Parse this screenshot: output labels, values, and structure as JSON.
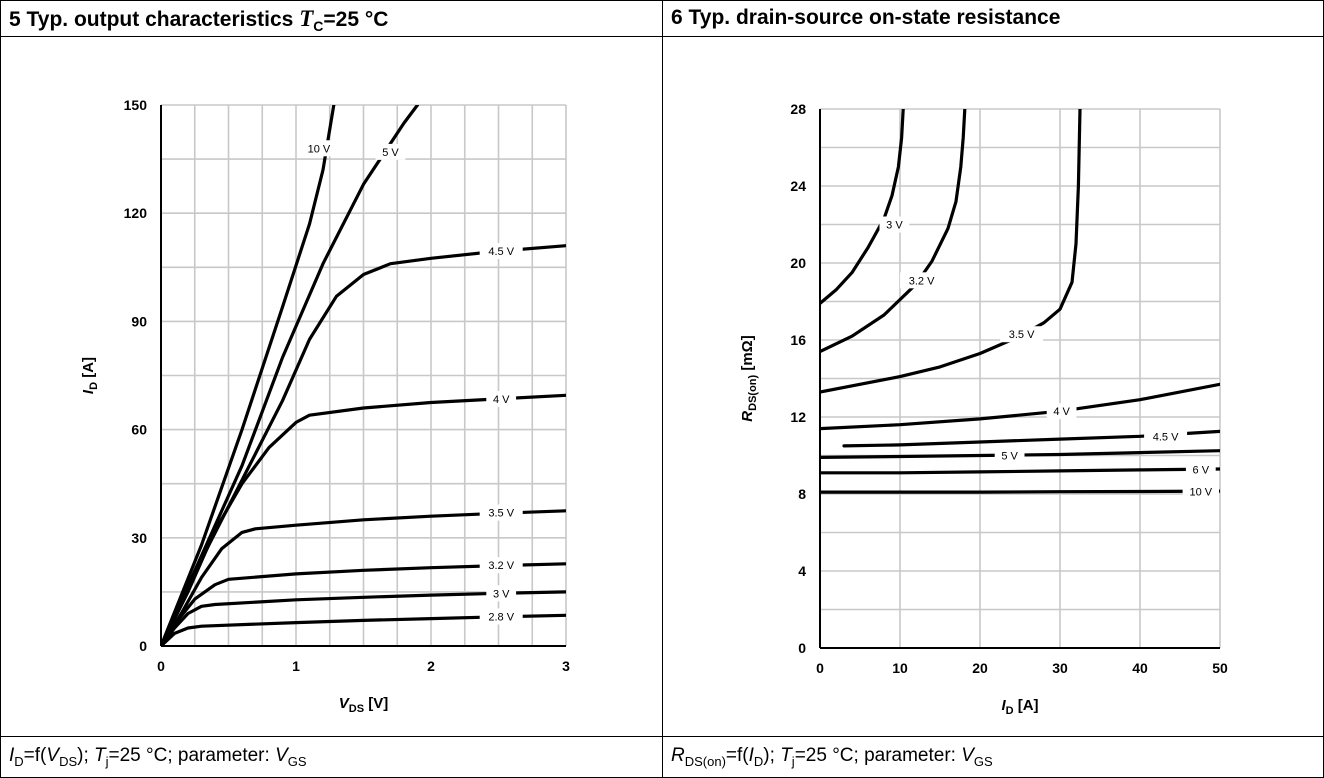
{
  "left": {
    "title_prefix": "5 Typ. output characteristics ",
    "title_symbol": "T",
    "title_sub": "C",
    "title_suffix": "=25 °C",
    "caption": {
      "p1": "I",
      "p1_sub": "D",
      "p2": "=f(",
      "p3": "V",
      "p3_sub": "DS",
      "p4": "); ",
      "p5": "T",
      "p5_sub": "j",
      "p6": "=25 °C; parameter: ",
      "p7": "V",
      "p7_sub": "GS"
    }
  },
  "right": {
    "title": "6 Typ. drain-source on-state resistance",
    "caption": {
      "p1": "R",
      "p1_sub": "DS(on)",
      "p2": "=f(",
      "p3": "I",
      "p3_sub": "D",
      "p4": "); ",
      "p5": "T",
      "p5_sub": "j",
      "p6": "=25 °C; parameter: ",
      "p7": "V",
      "p7_sub": "GS"
    }
  },
  "chart_data": [
    {
      "type": "line",
      "xlabel_main": "V",
      "xlabel_sub": "DS",
      "xlabel_unit": " [V]",
      "ylabel_main": "I",
      "ylabel_sub": "D",
      "ylabel_unit": " [A]",
      "xlim": [
        0,
        3
      ],
      "ylim": [
        0,
        150
      ],
      "xticks": [
        0,
        1,
        2,
        3
      ],
      "yticks": [
        0,
        30,
        60,
        90,
        120,
        150
      ],
      "grid": true,
      "series": [
        {
          "name": "10 V",
          "points": [
            [
              0,
              0
            ],
            [
              0.3,
              28
            ],
            [
              0.6,
              60
            ],
            [
              0.9,
              94
            ],
            [
              1.1,
              117
            ],
            [
              1.2,
              132
            ],
            [
              1.28,
              150
            ]
          ],
          "label_at": [
            1.17,
            138
          ]
        },
        {
          "name": "5 V",
          "points": [
            [
              0,
              0
            ],
            [
              0.3,
              25
            ],
            [
              0.6,
              50
            ],
            [
              0.9,
              80
            ],
            [
              1.2,
              106
            ],
            [
              1.5,
              128
            ],
            [
              1.8,
              145
            ],
            [
              1.9,
              150
            ]
          ],
          "label_at": [
            1.7,
            137
          ]
        },
        {
          "name": "4.5 V",
          "points": [
            [
              0,
              0
            ],
            [
              0.3,
              24
            ],
            [
              0.6,
              46
            ],
            [
              0.9,
              68
            ],
            [
              1.1,
              85
            ],
            [
              1.3,
              97
            ],
            [
              1.5,
              103
            ],
            [
              1.7,
              106
            ],
            [
              2.0,
              107.5
            ],
            [
              2.5,
              109.5
            ],
            [
              3.0,
              111
            ]
          ],
          "label_at": [
            2.52,
            109.5
          ]
        },
        {
          "name": "4 V",
          "points": [
            [
              0,
              0
            ],
            [
              0.2,
              15
            ],
            [
              0.4,
              32
            ],
            [
              0.6,
              45
            ],
            [
              0.8,
              55
            ],
            [
              1.0,
              62
            ],
            [
              1.1,
              64
            ],
            [
              1.5,
              66
            ],
            [
              2.0,
              67.5
            ],
            [
              2.5,
              68.5
            ],
            [
              3.0,
              69.5
            ]
          ],
          "label_at": [
            2.52,
            68.5
          ]
        },
        {
          "name": "3.5 V",
          "points": [
            [
              0,
              0
            ],
            [
              0.15,
              9
            ],
            [
              0.3,
              19
            ],
            [
              0.45,
              27
            ],
            [
              0.6,
              31.5
            ],
            [
              0.7,
              32.5
            ],
            [
              1.0,
              33.5
            ],
            [
              1.5,
              35
            ],
            [
              2.0,
              36
            ],
            [
              2.5,
              36.8
            ],
            [
              3.0,
              37.5
            ]
          ],
          "label_at": [
            2.52,
            37
          ]
        },
        {
          "name": "3.2 V",
          "points": [
            [
              0,
              0
            ],
            [
              0.1,
              6
            ],
            [
              0.25,
              13
            ],
            [
              0.4,
              17
            ],
            [
              0.5,
              18.5
            ],
            [
              1.0,
              20
            ],
            [
              1.5,
              21
            ],
            [
              2.0,
              21.7
            ],
            [
              2.5,
              22.3
            ],
            [
              3.0,
              22.8
            ]
          ],
          "label_at": [
            2.52,
            22.4
          ]
        },
        {
          "name": "3 V",
          "points": [
            [
              0,
              0
            ],
            [
              0.1,
              5
            ],
            [
              0.2,
              9
            ],
            [
              0.3,
              11
            ],
            [
              0.4,
              11.5
            ],
            [
              1.0,
              12.8
            ],
            [
              1.5,
              13.5
            ],
            [
              2.0,
              14.1
            ],
            [
              2.5,
              14.6
            ],
            [
              3.0,
              15
            ]
          ],
          "label_at": [
            2.52,
            14.6
          ]
        },
        {
          "name": "2.8 V",
          "points": [
            [
              0,
              0
            ],
            [
              0.1,
              3.5
            ],
            [
              0.2,
              5
            ],
            [
              0.3,
              5.5
            ],
            [
              1.0,
              6.5
            ],
            [
              1.5,
              7.1
            ],
            [
              2.0,
              7.6
            ],
            [
              2.5,
              8.1
            ],
            [
              3.0,
              8.5
            ]
          ],
          "label_at": [
            2.52,
            8.2
          ]
        }
      ]
    },
    {
      "type": "line",
      "xlabel_main": "I",
      "xlabel_sub": "D",
      "xlabel_unit": " [A]",
      "ylabel_main": "R",
      "ylabel_sub": "DS(on)",
      "ylabel_unit": "  [mΩ]",
      "xlim": [
        0,
        50
      ],
      "ylim": [
        0,
        28
      ],
      "xticks": [
        0,
        10,
        20,
        30,
        40,
        50
      ],
      "yticks": [
        0,
        4,
        8,
        12,
        16,
        20,
        24,
        28
      ],
      "grid": true,
      "series": [
        {
          "name": "3 V",
          "points": [
            [
              0,
              17.9
            ],
            [
              2,
              18.6
            ],
            [
              4,
              19.5
            ],
            [
              6,
              20.8
            ],
            [
              8,
              22.3
            ],
            [
              9,
              23.5
            ],
            [
              9.8,
              25
            ],
            [
              10.2,
              26.5
            ],
            [
              10.4,
              28
            ]
          ],
          "label_at": [
            9.3,
            22
          ]
        },
        {
          "name": "3.2 V",
          "points": [
            [
              0,
              15.4
            ],
            [
              4,
              16.2
            ],
            [
              8,
              17.3
            ],
            [
              12,
              18.9
            ],
            [
              14,
              20.1
            ],
            [
              16,
              21.8
            ],
            [
              17,
              23.2
            ],
            [
              17.6,
              25
            ],
            [
              17.9,
              26.5
            ],
            [
              18.1,
              28
            ]
          ],
          "label_at": [
            12.7,
            19.1
          ]
        },
        {
          "name": "3.5 V",
          "points": [
            [
              0,
              13.3
            ],
            [
              5,
              13.7
            ],
            [
              10,
              14.1
            ],
            [
              15,
              14.6
            ],
            [
              20,
              15.3
            ],
            [
              25,
              16.2
            ],
            [
              28,
              16.9
            ],
            [
              30,
              17.6
            ],
            [
              31.5,
              19
            ],
            [
              32,
              21
            ],
            [
              32.3,
              24
            ],
            [
              32.5,
              28
            ]
          ],
          "label_at": [
            25.2,
            16.3
          ]
        },
        {
          "name": "4 V",
          "points": [
            [
              0,
              11.4
            ],
            [
              10,
              11.6
            ],
            [
              20,
              11.9
            ],
            [
              30,
              12.3
            ],
            [
              40,
              12.9
            ],
            [
              50,
              13.7
            ]
          ],
          "label_at": [
            30.2,
            12.3
          ]
        },
        {
          "name": "4.5 V",
          "points": [
            [
              3,
              10.5
            ],
            [
              10,
              10.55
            ],
            [
              20,
              10.7
            ],
            [
              30,
              10.85
            ],
            [
              40,
              11.0
            ],
            [
              50,
              11.25
            ]
          ],
          "label_at": [
            43.2,
            11.0
          ]
        },
        {
          "name": "5 V",
          "points": [
            [
              0,
              9.9
            ],
            [
              10,
              9.95
            ],
            [
              20,
              10.0
            ],
            [
              30,
              10.05
            ],
            [
              40,
              10.15
            ],
            [
              50,
              10.25
            ]
          ],
          "label_at": [
            23.7,
            10.0
          ]
        },
        {
          "name": "6 V",
          "points": [
            [
              0,
              9.1
            ],
            [
              10,
              9.1
            ],
            [
              20,
              9.15
            ],
            [
              30,
              9.2
            ],
            [
              40,
              9.25
            ],
            [
              50,
              9.3
            ]
          ],
          "label_at": [
            47.6,
            9.28
          ]
        },
        {
          "name": "10 V",
          "points": [
            [
              0,
              8.1
            ],
            [
              10,
              8.1
            ],
            [
              20,
              8.1
            ],
            [
              30,
              8.12
            ],
            [
              40,
              8.13
            ],
            [
              50,
              8.15
            ]
          ],
          "label_at": [
            47.6,
            8.12
          ]
        }
      ]
    }
  ]
}
